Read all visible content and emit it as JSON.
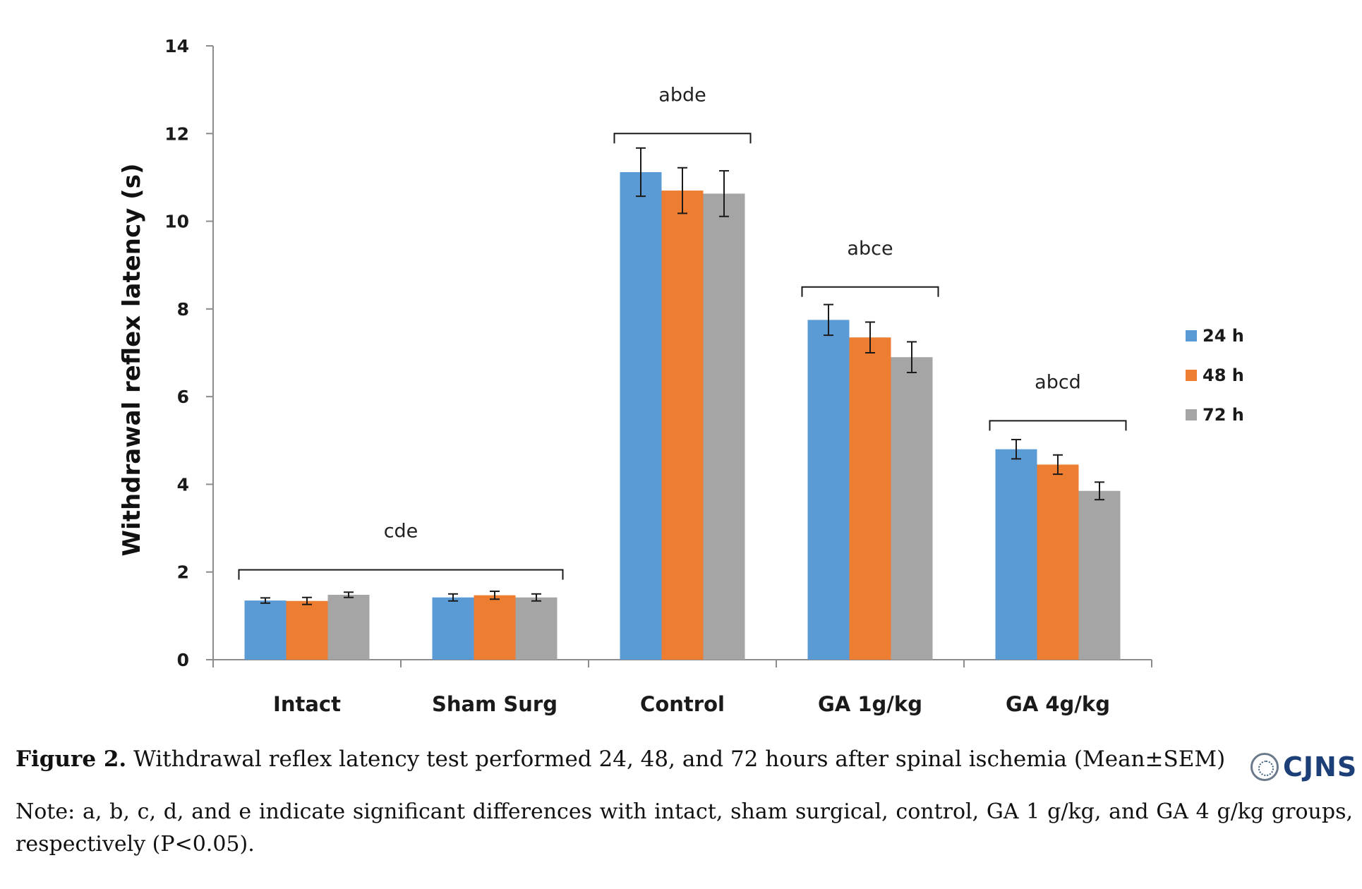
{
  "chart_data": {
    "type": "bar",
    "title": "",
    "xlabel": "",
    "ylabel": "Withdrawal reflex latency (s)",
    "ylim": [
      0,
      14
    ],
    "yticks": [
      0,
      2,
      4,
      6,
      8,
      10,
      12,
      14
    ],
    "grid": false,
    "legend_position": "right",
    "categories": [
      "Intact",
      "Sham Surg",
      "Control",
      "GA 1g/kg",
      "GA 4g/kg"
    ],
    "series": [
      {
        "name": "24 h",
        "color": "#5b9bd5",
        "values": [
          1.35,
          1.42,
          11.12,
          7.75,
          4.8
        ],
        "errors": [
          0.06,
          0.08,
          0.55,
          0.35,
          0.22
        ]
      },
      {
        "name": "48 h",
        "color": "#ed7d31",
        "values": [
          1.34,
          1.47,
          10.7,
          7.35,
          4.45
        ],
        "errors": [
          0.08,
          0.09,
          0.52,
          0.35,
          0.22
        ]
      },
      {
        "name": "72 h",
        "color": "#a5a5a5",
        "values": [
          1.48,
          1.42,
          10.63,
          6.9,
          3.85
        ],
        "errors": [
          0.06,
          0.08,
          0.52,
          0.35,
          0.2
        ]
      }
    ],
    "annotations": [
      {
        "label": "cde",
        "from_category": 0,
        "to_category": 1,
        "level": 2.05
      },
      {
        "label": "abde",
        "from_category": 2,
        "to_category": 2,
        "level": 12.0
      },
      {
        "label": "abce",
        "from_category": 3,
        "to_category": 3,
        "level": 8.5
      },
      {
        "label": "abcd",
        "from_category": 4,
        "to_category": 4,
        "level": 5.45
      }
    ]
  },
  "caption": {
    "figure_number": "Figure 2.",
    "text": " Withdrawal reflex latency test performed 24, 48, and 72 hours after spinal ischemia (Mean±SEM)"
  },
  "note": "Note: a, b, c, d, and e indicate significant differences with intact, sham surgical, control, GA 1 g/kg, and GA 4 g/kg groups, respectively (P<0.05).",
  "logo": {
    "text": "CJNS"
  }
}
